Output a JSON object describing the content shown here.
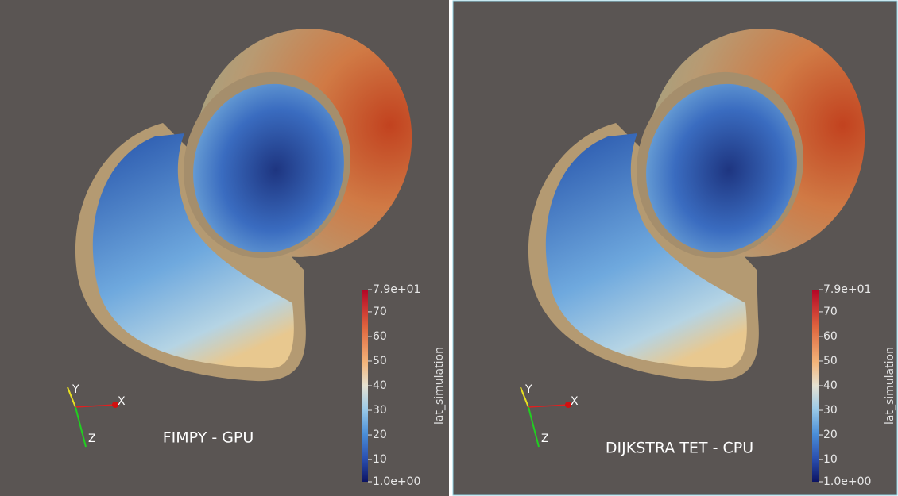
{
  "panels": [
    {
      "label": "FIMPY - GPU",
      "axes": {
        "y": "Y",
        "x": "X",
        "z": "Z"
      },
      "colorbar": {
        "title": "lat_simulation",
        "range": [
          1,
          79
        ],
        "ticks": [
          {
            "value": 79,
            "label": "7.9e+01"
          },
          70,
          60,
          50,
          40,
          30,
          20,
          10,
          {
            "value": 1,
            "label": "1.0e+00"
          }
        ]
      }
    },
    {
      "label": "DIJKSTRA TET - CPU",
      "axes": {
        "y": "Y",
        "x": "X",
        "z": "Z"
      },
      "colorbar": {
        "title": "lat_simulation",
        "range": [
          1,
          79
        ],
        "ticks": [
          {
            "value": 79,
            "label": "7.9e+01"
          },
          70,
          60,
          50,
          40,
          30,
          20,
          10,
          {
            "value": 1,
            "label": "1.0e+00"
          }
        ]
      }
    }
  ]
}
